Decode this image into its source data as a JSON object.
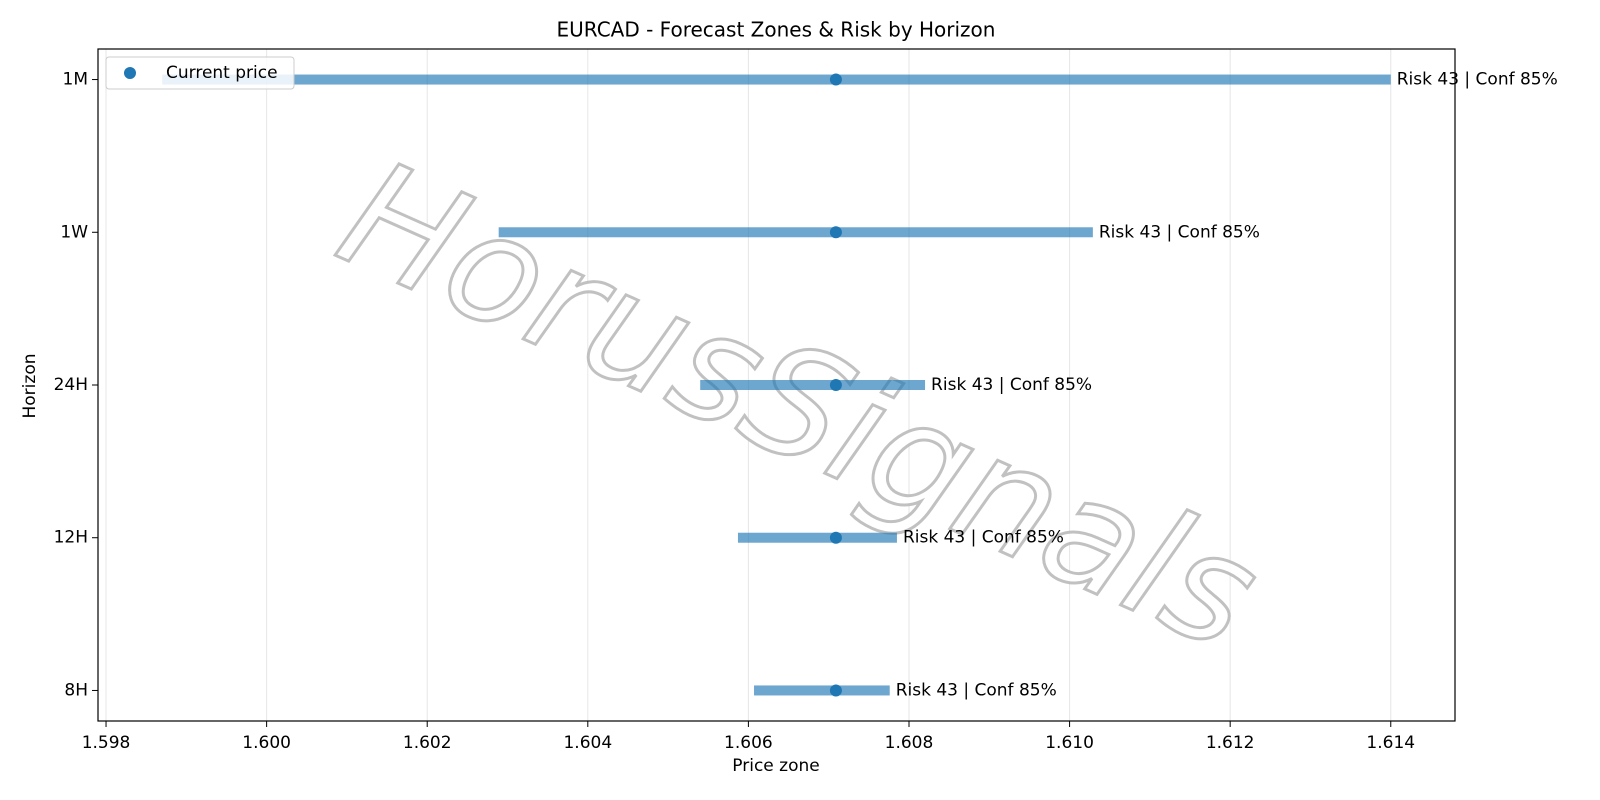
{
  "chart_data": {
    "type": "range",
    "title": "EURCAD - Forecast Zones & Risk by Horizon",
    "xlabel": "Price zone",
    "ylabel": "Horizon",
    "watermark": "HorusSignals",
    "categories": [
      "8H",
      "12H",
      "24H",
      "1W",
      "1M"
    ],
    "low": [
      1.60607,
      1.60587,
      1.6054,
      1.60289,
      1.5987
    ],
    "high": [
      1.60776,
      1.60785,
      1.6082,
      1.61029,
      1.614
    ],
    "range_color": "#1f77b4",
    "series": [
      {
        "name": "Current price",
        "color": "#1f77b4",
        "values": [
          1.60709,
          1.60709,
          1.60709,
          1.60709,
          1.60709
        ]
      }
    ],
    "labels": [
      "Risk 43 | Conf 85%",
      "Risk 43 | Conf 85%",
      "Risk 43 | Conf 85%",
      "Risk 43 | Conf 85%",
      "Risk 43 | Conf 85%"
    ],
    "xlim": [
      1.5979,
      1.6148
    ],
    "xticks": [
      1.598,
      {
        "value": 1.6,
        "label": "1.600"
      },
      1.602,
      1.604,
      1.606,
      1.608,
      {
        "value": 1.61,
        "label": "1.610"
      },
      1.612,
      1.614
    ],
    "grid": true,
    "legend": "upper left"
  }
}
